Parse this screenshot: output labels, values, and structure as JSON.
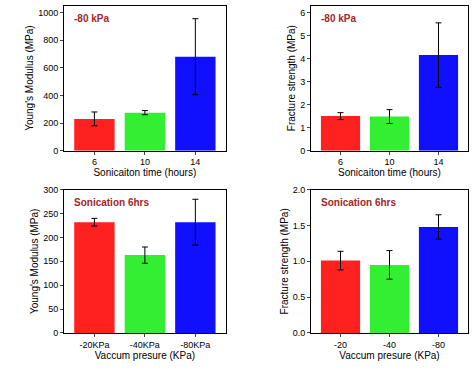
{
  "chart_data": [
    {
      "type": "bar",
      "annotation": "-80 kPa",
      "xlabel": "Sonicaiton time (hours)",
      "ylabel": "Young's Modulus (MPa)",
      "categories": [
        "6",
        "10",
        "14"
      ],
      "values": [
        230,
        275,
        680
      ],
      "errors": [
        50,
        15,
        275
      ],
      "colors": [
        "#ff2020",
        "#33ee33",
        "#1010ff"
      ],
      "ylim": [
        0,
        1050
      ],
      "yticks": [
        0,
        200,
        400,
        600,
        800,
        1000
      ]
    },
    {
      "type": "bar",
      "annotation": "-80 kPa",
      "xlabel": "Sonicaiton time (hours)",
      "ylabel": "Fracture strength (MPa)",
      "categories": [
        "6",
        "10",
        "14"
      ],
      "values": [
        1.5,
        1.48,
        4.15
      ],
      "errors": [
        0.15,
        0.3,
        1.4
      ],
      "colors": [
        "#ff2020",
        "#33ee33",
        "#1010ff"
      ],
      "ylim": [
        0,
        6.3
      ],
      "yticks": [
        0,
        1,
        2,
        3,
        4,
        5,
        6
      ]
    },
    {
      "type": "bar",
      "annotation": "Sonication 6hrs",
      "xlabel": "Vaccum presure (KPa)",
      "ylabel": "Young's Modulus (MPa)",
      "categories": [
        "-20KPa",
        "-40KPa",
        "-80KPa"
      ],
      "values": [
        232,
        163,
        232
      ],
      "errors": [
        8,
        17,
        48
      ],
      "colors": [
        "#ff2020",
        "#33ee33",
        "#1010ff"
      ],
      "ylim": [
        0,
        300
      ],
      "yticks": [
        0,
        50,
        100,
        150,
        200,
        250,
        300
      ]
    },
    {
      "type": "bar",
      "annotation": "Sonication 6hrs",
      "xlabel": "Vaccum presure (KPa)",
      "ylabel": "Fracture strength (MPa)",
      "categories": [
        "-20",
        "-40",
        "-80"
      ],
      "values": [
        1.01,
        0.95,
        1.48
      ],
      "errors": [
        0.13,
        0.2,
        0.17
      ],
      "colors": [
        "#ff2020",
        "#33ee33",
        "#1010ff"
      ],
      "ylim": [
        0,
        2.0
      ],
      "yticks": [
        {
          "value": 0,
          "label": "0.0"
        },
        0.5,
        {
          "value": 1,
          "label": "1.0"
        },
        1.5,
        {
          "value": 2,
          "label": "2.0"
        }
      ]
    }
  ]
}
